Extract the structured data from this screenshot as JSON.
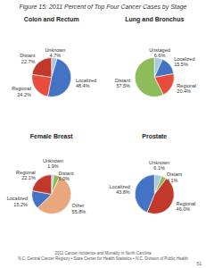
{
  "title": "Figure 15: 2011 Percent of Top Four Cancer Cases by Stage",
  "annotations": [
    "2011 Cancer Incidence and Mortality in North Carolina",
    "N.C. Central Cancer Registry • State Center for Health Statistics • N.C. Division of Public Health",
    "51"
  ],
  "chart_data": [
    {
      "type": "pie",
      "title": "Colon and Rectum",
      "categories": [
        "Unknown",
        "Localized",
        "Regional",
        "Distant"
      ],
      "values": [
        4.7,
        48.4,
        24.2,
        22.7
      ],
      "value_labels": [
        "4.7%",
        "48.4%",
        "24.2%",
        "22.7%"
      ],
      "colors": [
        "#a8c8e0",
        "#4472c4",
        "#e74c3c",
        "#c0392b"
      ],
      "data_labels": true
    },
    {
      "type": "pie",
      "title": "Lung and Bronchus",
      "categories": [
        "Unstaged",
        "Localized",
        "Regional",
        "Distant"
      ],
      "values": [
        6.6,
        15.5,
        20.4,
        57.5
      ],
      "value_labels": [
        "6.6%",
        "15.5%",
        "20.4%",
        "57.5%"
      ],
      "colors": [
        "#a8c8e0",
        "#4472c4",
        "#e74c3c",
        "#8fbc5a"
      ],
      "data_labels": true
    },
    {
      "type": "pie",
      "title": "Female Breast",
      "categories": [
        "Unknown",
        "Distant",
        "Other",
        "Localized",
        "Regional"
      ],
      "values": [
        1.9,
        5.0,
        55.8,
        15.2,
        22.1
      ],
      "value_labels": [
        "1.9%",
        "5.0%",
        "55.8%",
        "15.2%",
        "22.1%"
      ],
      "colors": [
        "#a8c8e0",
        "#8fbc5a",
        "#e8a87c",
        "#4472c4",
        "#c0392b"
      ],
      "data_labels": true
    },
    {
      "type": "pie",
      "title": "Prostate",
      "categories": [
        "Unknown",
        "Distant",
        "Regional",
        "Localized"
      ],
      "values": [
        6.1,
        4.1,
        46.0,
        43.8
      ],
      "value_labels": [
        "6.1%",
        "4.1%",
        "46.0%",
        "43.8%"
      ],
      "colors": [
        "#a8c8e0",
        "#8fbc5a",
        "#c0392b",
        "#4472c4"
      ],
      "data_labels": true
    }
  ]
}
